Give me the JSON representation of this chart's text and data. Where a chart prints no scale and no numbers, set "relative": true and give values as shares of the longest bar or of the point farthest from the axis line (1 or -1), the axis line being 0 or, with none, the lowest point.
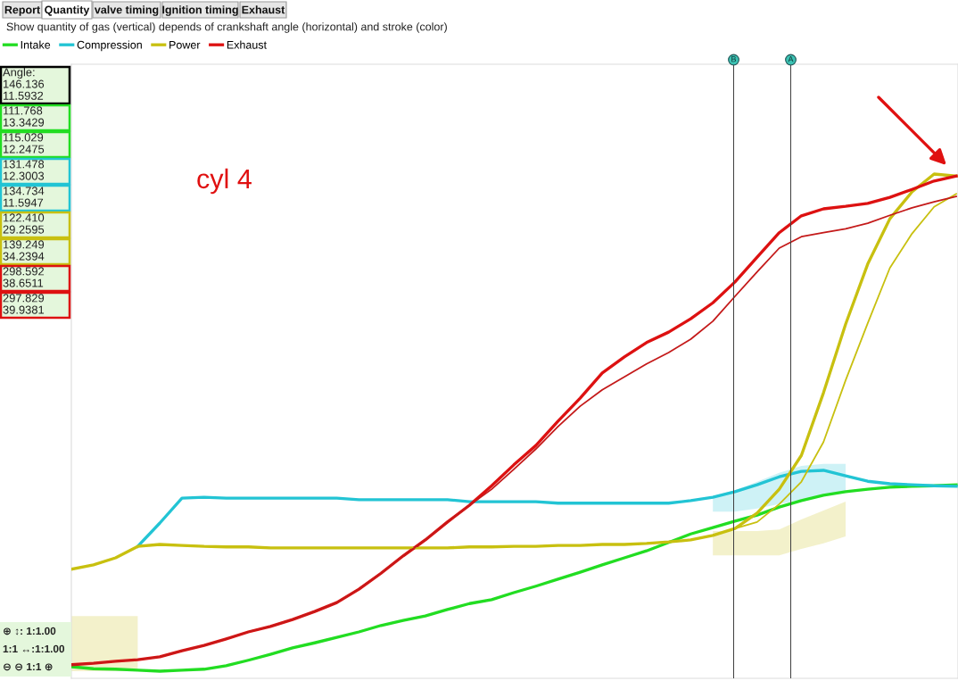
{
  "chart_data": {
    "type": "line",
    "relative": true,
    "title": "Show quantity of gas (vertical) depends of crankshaft angle (horizontal) and stroke (color)",
    "categories": [
      null,
      null,
      null,
      null,
      null,
      null,
      null,
      null,
      null,
      null,
      null,
      null,
      null,
      null,
      null,
      null,
      null,
      null,
      null,
      null,
      null,
      null,
      null,
      null,
      null,
      null,
      null,
      null,
      null,
      null,
      null,
      null,
      null,
      null,
      null,
      null,
      null,
      null,
      null,
      null,
      null
    ],
    "series": [
      {
        "name": "Intake",
        "color": "#22dd22",
        "values": [
          0.009,
          0.005,
          0.004,
          0.002,
          0,
          0.002,
          0.004,
          0.011,
          0.022,
          0.034,
          0.047,
          0.057,
          0.068,
          0.079,
          0.092,
          0.102,
          0.111,
          0.124,
          0.136,
          0.144,
          0.158,
          0.171,
          0.185,
          0.199,
          0.214,
          0.228,
          0.242,
          0.259,
          0.276,
          0.289,
          0.302,
          0.314,
          0.33,
          0.343,
          0.354,
          0.361,
          0.366,
          0.37,
          0.372,
          0.373,
          0.375
        ]
      },
      {
        "name": "Compression",
        "color": "#22c4d4",
        "values": [
          null,
          null,
          null,
          0.251,
          0.298,
          0.348,
          0.35,
          0.348,
          0.348,
          0.348,
          0.348,
          0.348,
          0.348,
          0.345,
          0.345,
          0.345,
          0.345,
          0.345,
          0.341,
          0.341,
          0.341,
          0.341,
          0.338,
          0.338,
          0.338,
          0.338,
          0.338,
          0.338,
          0.343,
          0.35,
          0.361,
          0.375,
          0.391,
          0.402,
          0.404,
          0.393,
          0.382,
          0.377,
          0.375,
          0.373,
          0.372
        ],
        "lower": [
          null,
          null,
          null,
          null,
          null,
          null,
          null,
          null,
          null,
          null,
          null,
          null,
          null,
          null,
          null,
          null,
          null,
          null,
          null,
          null,
          null,
          null,
          null,
          null,
          null,
          null,
          null,
          null,
          null,
          0.321,
          0.321,
          0.327,
          0.336,
          0.345,
          0.354,
          0.359,
          null,
          null,
          null,
          null,
          null
        ],
        "upper": [
          null,
          null,
          null,
          null,
          null,
          null,
          null,
          null,
          null,
          null,
          null,
          null,
          null,
          null,
          null,
          null,
          null,
          null,
          null,
          null,
          null,
          null,
          null,
          null,
          null,
          null,
          null,
          null,
          null,
          0.352,
          0.364,
          0.381,
          0.399,
          0.413,
          0.417,
          0.417,
          null,
          null,
          null,
          null,
          null
        ]
      },
      {
        "name": "Power",
        "color": "#c8c010",
        "values": [
          0.205,
          0.214,
          0.228,
          0.251,
          0.255,
          0.253,
          0.251,
          0.25,
          0.25,
          0.248,
          0.248,
          0.248,
          0.248,
          0.248,
          0.248,
          0.248,
          0.248,
          0.248,
          0.25,
          0.25,
          0.251,
          0.251,
          0.253,
          0.253,
          0.255,
          0.255,
          0.257,
          0.26,
          0.264,
          0.273,
          0.287,
          0.318,
          0.366,
          0.434,
          0.56,
          0.698,
          0.819,
          0.91,
          0.964,
          1.0,
          0.996
        ],
        "lower": [
          0,
          0,
          0,
          0,
          null,
          null,
          null,
          null,
          null,
          null,
          null,
          null,
          null,
          null,
          null,
          null,
          null,
          null,
          null,
          null,
          null,
          null,
          null,
          null,
          null,
          null,
          null,
          null,
          null,
          0.233,
          0.233,
          0.233,
          0.233,
          0.246,
          0.257,
          0.271,
          null,
          null,
          null,
          null,
          null
        ],
        "upper": [
          0.111,
          0.111,
          0.111,
          0.111,
          null,
          null,
          null,
          null,
          null,
          null,
          null,
          null,
          null,
          null,
          null,
          null,
          null,
          null,
          null,
          null,
          null,
          null,
          null,
          null,
          null,
          null,
          null,
          null,
          null,
          0.282,
          0.282,
          0.282,
          0.285,
          0.305,
          0.323,
          0.341,
          null,
          null,
          null,
          null,
          null
        ]
      },
      {
        "name": "Exhaust",
        "color": "#dd1111",
        "values": [
          0.013,
          0.016,
          0.02,
          0.023,
          0.029,
          0.041,
          0.052,
          0.065,
          0.079,
          0.09,
          0.104,
          0.12,
          0.138,
          0.165,
          0.197,
          0.232,
          0.264,
          0.3,
          0.334,
          0.373,
          0.415,
          0.454,
          0.503,
          0.549,
          0.6,
          0.632,
          0.661,
          0.682,
          0.709,
          0.741,
          0.783,
          0.833,
          0.882,
          0.916,
          0.93,
          0.935,
          0.941,
          0.953,
          0.969,
          0.986,
          0.996
        ]
      },
      {
        "color": "#c8c010",
        "values": [
          0.205,
          0.214,
          0.228,
          0.251,
          0.255,
          0.253,
          0.251,
          0.25,
          0.25,
          0.248,
          0.248,
          0.248,
          0.248,
          0.248,
          0.248,
          0.248,
          0.248,
          0.248,
          0.25,
          0.25,
          0.251,
          0.251,
          0.253,
          0.253,
          0.255,
          0.255,
          0.257,
          0.26,
          0.264,
          0.273,
          0.287,
          0.3,
          0.336,
          0.381,
          0.461,
          0.585,
          0.7,
          0.811,
          0.88,
          0.934,
          0.96
        ]
      },
      {
        "color": "#c41a1a",
        "values": [
          0.013,
          0.016,
          0.02,
          0.023,
          0.029,
          0.041,
          0.052,
          0.065,
          0.079,
          0.09,
          0.104,
          0.12,
          0.138,
          0.165,
          0.197,
          0.232,
          0.264,
          0.3,
          0.334,
          0.366,
          0.406,
          0.447,
          0.492,
          0.533,
          0.566,
          0.592,
          0.618,
          0.641,
          0.668,
          0.704,
          0.754,
          0.803,
          0.851,
          0.874,
          0.882,
          0.89,
          0.901,
          0.917,
          0.932,
          0.944,
          0.955
        ]
      }
    ],
    "annotations": [
      "Report",
      "Quantity",
      "valve timing",
      "Ignition timing",
      "Exhaust",
      "cyl 4",
      "Angle:\n146.136\n11.5932",
      "111.768\n13.3429",
      "115.029\n12.2475",
      "131.478\n12.3003",
      "134.734\n11.5947",
      "122.410\n29.2595",
      "139.249\n34.2394",
      "298.592\n38.6511",
      "297.829\n39.9381",
      "⊕ ↕: 1:1.00",
      "1:1 ↔:1:1.00",
      "⊖ ⊖ 1:1 ⊕",
      "B",
      "A"
    ],
    "legend": "top left"
  }
}
